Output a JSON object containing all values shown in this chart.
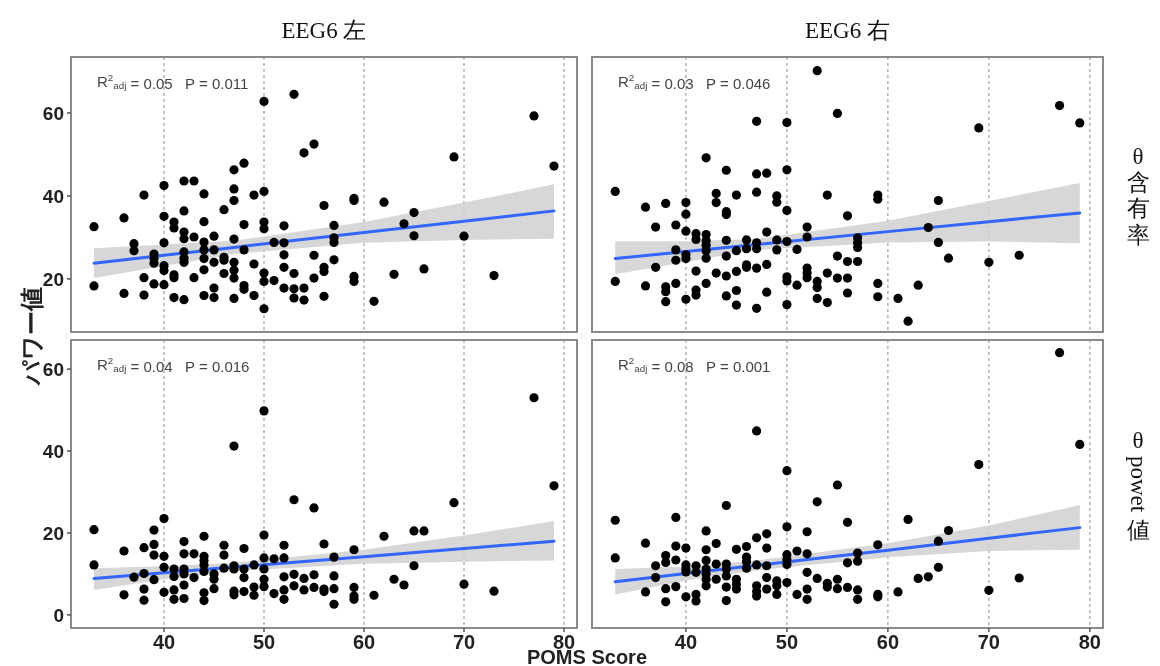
{
  "chart_data": [
    {
      "type": "scatter",
      "title": "EEG6 左",
      "ylabel": "パワー値",
      "annotations": [
        "R$^{2}$$_{adj}$ = 0.05   P = 0.011"
      ],
      "xlim": [
        30.7,
        81.3
      ],
      "xticks": [
        40,
        50,
        60,
        70,
        80
      ],
      "ylim": [
        7.2,
        73.5
      ],
      "yticks": [
        20,
        40,
        60
      ],
      "grid": "x",
      "tick_labels": "y",
      "series": [
        {
          "type": "scatter",
          "marker": "circle",
          "color": "#000000",
          "x": [
            50,
            53,
            77,
            54,
            55,
            69,
            79,
            47,
            48,
            40,
            42,
            43,
            38,
            44,
            47,
            49,
            50,
            47,
            56,
            59,
            59,
            62,
            36,
            40,
            42,
            46,
            65,
            33,
            41,
            41,
            44,
            48,
            50,
            50,
            52,
            57,
            64,
            65,
            70,
            37,
            37,
            40,
            42,
            42,
            43,
            44,
            45,
            47,
            51,
            52,
            57,
            57,
            39,
            39,
            39,
            40,
            40,
            41,
            41,
            42,
            42,
            42,
            44,
            44,
            45,
            46,
            46,
            48,
            47,
            47,
            49,
            50,
            52,
            52,
            53,
            55,
            56,
            56,
            57,
            44,
            45,
            46,
            38,
            43,
            47,
            50,
            51,
            55,
            59,
            59,
            63,
            66,
            73,
            33,
            39,
            40,
            36,
            38,
            41,
            42,
            44,
            45,
            45,
            47,
            48,
            48,
            49,
            50,
            52,
            53,
            53,
            54,
            54,
            56,
            61
          ],
          "values": [
            62.8,
            64.5,
            59.3,
            50.4,
            52.5,
            49.4,
            47.2,
            46.3,
            47.9,
            42.5,
            43.6,
            43.6,
            40.2,
            40.5,
            41.7,
            40.2,
            41.1,
            38.9,
            37.7,
            39.4,
            38.9,
            38.5,
            34.7,
            35.1,
            36.4,
            36.7,
            36.0,
            32.6,
            33.7,
            32.3,
            33.8,
            33.1,
            33.7,
            32.1,
            32.8,
            32.9,
            33.3,
            30.4,
            30.3,
            28.5,
            26.8,
            28.7,
            31.3,
            29.7,
            30.1,
            28.9,
            30.3,
            29.6,
            28.8,
            28.7,
            29.9,
            28.8,
            26.0,
            25.0,
            23.8,
            23.2,
            22.0,
            21.0,
            20.3,
            26.5,
            25.0,
            24.0,
            27.0,
            24.9,
            27.0,
            25.2,
            24.5,
            27.0,
            24.0,
            22.1,
            23.6,
            21.4,
            25.8,
            22.8,
            21.3,
            25.7,
            22.8,
            21.8,
            24.6,
            22.2,
            24.0,
            21.3,
            20.3,
            20.3,
            20.2,
            19.4,
            19.6,
            20.2,
            20.6,
            19.4,
            21.1,
            22.4,
            20.8,
            18.3,
            18.8,
            18.6,
            16.5,
            16.1,
            15.5,
            15.0,
            16.0,
            17.8,
            15.5,
            15.3,
            18.4,
            17.5,
            16.0,
            12.8,
            17.8,
            17.6,
            15.4,
            17.8,
            14.9,
            15.8,
            14.6
          ]
        },
        {
          "type": "line",
          "color": "#3366ff",
          "x": [
            33,
            40,
            47,
            60,
            70,
            79
          ],
          "values": [
            23.8,
            25.7,
            27.6,
            31.2,
            33.9,
            36.4
          ],
          "upper": [
            27.4,
            28.3,
            29.2,
            33.7,
            38.4,
            42.8
          ],
          "lower": [
            20.2,
            23.1,
            26.0,
            28.7,
            29.4,
            29.7
          ]
        }
      ]
    },
    {
      "type": "scatter",
      "title": "EEG6 右",
      "annotations": [
        "R$^{2}$$_{adj}$ = 0.03   P = 0.046",
        "θ含有率"
      ],
      "xlim": [
        30.7,
        81.3
      ],
      "xticks": [
        40,
        50,
        60,
        70,
        80
      ],
      "ylim": [
        7.2,
        73.5
      ],
      "grid": "x",
      "tick_labels": false,
      "series": [
        {
          "type": "scatter",
          "marker": "circle",
          "color": "#000000",
          "x": [
            53,
            47,
            50,
            55,
            69,
            77,
            79,
            42,
            44,
            47,
            48,
            50,
            33,
            43,
            45,
            47,
            49,
            49,
            54,
            59,
            59,
            36,
            38,
            40,
            43,
            40,
            44,
            44,
            50,
            56,
            65,
            37,
            39,
            40,
            41,
            41,
            42,
            42,
            42,
            44,
            46,
            47,
            47,
            48,
            49,
            50,
            52,
            52,
            57,
            57,
            57,
            64,
            65,
            39,
            39,
            40,
            40,
            42,
            42,
            45,
            46,
            44,
            49,
            51,
            55,
            56,
            57,
            66,
            70,
            73,
            37,
            41,
            43,
            45,
            46,
            46,
            47,
            48,
            50,
            50,
            52,
            52,
            52,
            53,
            53,
            54,
            55,
            56,
            33,
            36,
            38,
            38,
            38,
            39,
            41,
            41,
            42,
            44,
            45,
            44,
            48,
            51,
            56,
            59,
            59,
            61,
            63,
            40,
            45,
            47,
            50,
            53,
            54,
            62
          ],
          "values": [
            70.2,
            58.0,
            57.7,
            59.9,
            56.4,
            61.8,
            57.6,
            49.2,
            46.2,
            45.3,
            45.5,
            46.3,
            41.1,
            40.6,
            40.2,
            40.9,
            40.0,
            38.5,
            40.2,
            40.2,
            39.2,
            37.3,
            38.2,
            38.4,
            38.4,
            35.6,
            36.2,
            35.5,
            36.5,
            35.2,
            38.9,
            32.5,
            33.0,
            31.5,
            30.9,
            29.5,
            30.7,
            29.2,
            28.1,
            29.3,
            29.4,
            28.7,
            27.3,
            31.3,
            29.4,
            29.0,
            32.5,
            30.1,
            29.9,
            28.7,
            27.6,
            32.4,
            28.8,
            27.0,
            24.5,
            25.8,
            24.9,
            26.8,
            25.0,
            26.8,
            27.3,
            25.5,
            27.0,
            27.1,
            25.5,
            24.2,
            24.2,
            25.0,
            24.0,
            25.7,
            22.8,
            21.9,
            21.4,
            21.8,
            23.4,
            22.8,
            22.6,
            23.5,
            20.5,
            19.5,
            22.6,
            21.4,
            20.3,
            19.4,
            17.9,
            21.4,
            20.2,
            20.2,
            19.4,
            18.3,
            18.1,
            16.9,
            14.5,
            18.9,
            17.3,
            16.1,
            18.9,
            20.7,
            17.2,
            15.9,
            16.8,
            18.5,
            16.6,
            18.9,
            15.7,
            15.3,
            18.5,
            15.1,
            13.7,
            12.9,
            13.8,
            15.3,
            14.3,
            9.8
          ]
        },
        {
          "type": "line",
          "color": "#3366ff",
          "x": [
            33,
            40,
            47,
            60,
            70,
            79
          ],
          "values": [
            24.9,
            26.6,
            28.3,
            31.4,
            33.8,
            35.9
          ],
          "upper": [
            29.1,
            29.1,
            29.6,
            34.0,
            38.8,
            43.1
          ],
          "lower": [
            21.1,
            24.1,
            27.0,
            28.8,
            29.0,
            28.6
          ]
        }
      ]
    },
    {
      "type": "scatter",
      "xlabel": "POMS Score",
      "annotations": [
        "R$^{2}$$_{adj}$ = 0.04   P = 0.016"
      ],
      "xlim": [
        30.7,
        81.3
      ],
      "xticks": [
        40,
        50,
        60,
        70,
        80
      ],
      "ylim": [
        -3.2,
        67.1
      ],
      "yticks": [
        0,
        20,
        40,
        60
      ],
      "grid": "x",
      "series": [
        {
          "type": "scatter",
          "marker": "circle",
          "color": "#000000",
          "x": [
            77,
            50,
            47,
            79,
            53,
            55,
            69,
            40,
            33,
            39,
            44,
            50,
            62,
            65,
            66,
            36,
            38,
            39,
            42,
            46,
            48,
            52,
            56,
            59,
            39,
            40,
            42,
            43,
            44,
            46,
            50,
            51,
            52,
            57,
            33,
            40,
            41,
            41,
            42,
            42,
            44,
            44,
            44,
            45,
            46,
            47,
            47,
            48,
            49,
            50,
            65,
            37,
            38,
            39,
            42,
            43,
            45,
            45,
            48,
            50,
            50,
            52,
            53,
            53,
            54,
            54,
            55,
            55,
            57,
            57,
            63,
            64,
            70,
            73,
            36,
            38,
            38,
            40,
            41,
            41,
            42,
            44,
            44,
            47,
            47,
            48,
            49,
            49,
            51,
            52,
            52,
            56,
            56,
            57,
            59,
            59,
            59,
            61
          ],
          "values": [
            53.0,
            49.8,
            41.2,
            31.5,
            28.1,
            26.1,
            27.4,
            23.5,
            20.8,
            20.7,
            19.2,
            19.5,
            19.2,
            20.5,
            20.5,
            15.6,
            16.4,
            17.2,
            17.9,
            17.0,
            16.2,
            17.0,
            17.3,
            15.9,
            14.6,
            14.3,
            14.9,
            14.9,
            14.3,
            14.6,
            13.9,
            13.7,
            13.9,
            14.1,
            12.2,
            11.6,
            11.2,
            9.4,
            11.2,
            10.0,
            13.3,
            12.2,
            10.6,
            10.0,
            11.4,
            12.0,
            11.2,
            11.2,
            12.2,
            11.2,
            12.0,
            9.2,
            10.1,
            8.6,
            7.3,
            9.1,
            8.7,
            6.4,
            9.1,
            8.7,
            6.9,
            9.3,
            9.9,
            7.1,
            8.9,
            6.1,
            9.8,
            6.7,
            9.5,
            6.4,
            8.7,
            7.3,
            7.5,
            5.8,
            4.9,
            6.3,
            3.6,
            5.5,
            6.1,
            3.8,
            4.0,
            5.4,
            3.5,
            5.8,
            4.9,
            5.7,
            6.8,
            4.8,
            5.2,
            6.1,
            3.8,
            6.3,
            5.7,
            2.6,
            6.7,
            4.6,
            3.8,
            4.8
          ]
        },
        {
          "type": "line",
          "color": "#3366ff",
          "x": [
            33,
            40,
            47,
            60,
            70,
            79
          ],
          "values": [
            8.9,
            10.3,
            11.7,
            14.2,
            16.2,
            18.0
          ],
          "upper": [
            11.4,
            11.9,
            12.7,
            15.9,
            19.4,
            22.9
          ],
          "lower": [
            6.1,
            8.7,
            10.7,
            12.5,
            13.0,
            13.3
          ]
        }
      ]
    },
    {
      "type": "scatter",
      "annotations": [
        "R$^{2}$$_{adj}$ = 0.08   P = 0.001",
        "θ powet 値"
      ],
      "xlim": [
        30.7,
        81.3
      ],
      "xticks": [
        40,
        50,
        60,
        70,
        80
      ],
      "ylim": [
        -3.2,
        67.1
      ],
      "grid": "x",
      "tick_labels": "x",
      "series": [
        {
          "type": "scatter",
          "marker": "circle",
          "color": "#000000",
          "x": [
            77,
            47,
            79,
            69,
            50,
            55,
            53,
            44,
            33,
            39,
            56,
            62,
            50,
            42,
            52,
            48,
            66,
            36,
            43,
            47,
            59,
            65,
            39,
            40,
            46,
            45,
            48,
            51,
            42,
            33,
            38,
            38,
            39,
            37,
            40,
            40,
            40,
            41,
            41,
            42,
            42,
            42,
            42,
            42,
            43,
            43,
            44,
            44,
            44,
            44,
            45,
            45,
            46,
            46,
            46,
            47,
            47,
            47,
            47,
            48,
            48,
            48,
            49,
            49,
            49,
            50,
            50,
            50,
            50,
            52,
            52,
            52,
            52,
            51,
            53,
            54,
            54,
            55,
            55,
            56,
            56,
            57,
            57,
            57,
            57,
            59,
            59,
            61,
            63,
            64,
            65,
            70,
            73,
            36,
            38,
            38,
            39,
            37,
            40,
            41,
            41,
            44,
            45
          ],
          "values": [
            64.0,
            44.9,
            41.6,
            36.7,
            35.2,
            31.7,
            27.6,
            26.7,
            23.1,
            23.8,
            22.6,
            23.3,
            21.5,
            20.5,
            20.3,
            19.8,
            20.6,
            17.5,
            17.4,
            18.8,
            17.1,
            18.0,
            16.8,
            16.3,
            16.7,
            16.0,
            16.3,
            15.6,
            15.9,
            13.9,
            14.5,
            12.8,
            13.4,
            12.0,
            12.2,
            11.2,
            10.5,
            12.0,
            10.4,
            13.3,
            11.2,
            10.0,
            8.7,
            7.1,
            12.4,
            8.7,
            12.4,
            11.2,
            9.5,
            6.8,
            8.7,
            6.3,
            14.1,
            13.0,
            11.4,
            12.2,
            7.1,
            5.7,
            4.6,
            12.0,
            9.1,
            6.3,
            8.3,
            7.1,
            5.0,
            14.7,
            13.5,
            12.3,
            7.9,
            14.9,
            10.4,
            6.3,
            3.8,
            5.0,
            8.9,
            7.7,
            6.8,
            8.7,
            6.4,
            12.7,
            6.7,
            15.1,
            13.1,
            6.1,
            3.8,
            5.0,
            4.4,
            5.6,
            8.9,
            9.3,
            11.6,
            6.0,
            9.0,
            5.6,
            6.4,
            3.2,
            6.9,
            9.1,
            4.4,
            5.0,
            3.4,
            3.5,
            7.5
          ]
        },
        {
          "type": "line",
          "color": "#3366ff",
          "x": [
            33,
            40,
            47,
            60,
            70,
            79
          ],
          "values": [
            8.1,
            10.1,
            12.1,
            15.8,
            18.7,
            21.3
          ],
          "upper": [
            11.2,
            11.8,
            13.3,
            17.5,
            21.8,
            26.8
          ],
          "lower": [
            5.0,
            8.4,
            10.9,
            14.1,
            15.6,
            15.9
          ]
        }
      ]
    }
  ]
}
